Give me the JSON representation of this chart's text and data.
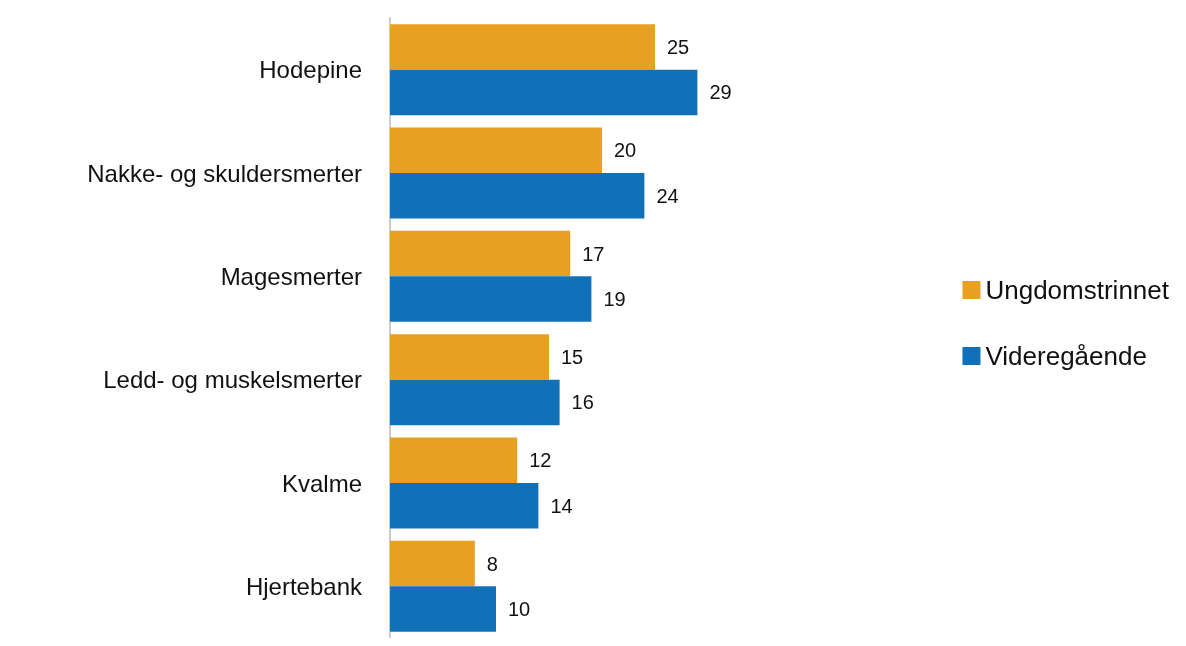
{
  "chart_data": {
    "type": "bar",
    "orientation": "horizontal",
    "categories": [
      "Hodepine",
      "Nakke- og skuldersmerter",
      "Magesmerter",
      "Ledd- og muskelsmerter",
      "Kvalme",
      "Hjertebank"
    ],
    "series": [
      {
        "name": "Ungdomstrinnet",
        "color": "#e8a020",
        "values": [
          25,
          20,
          17,
          15,
          12,
          8
        ]
      },
      {
        "name": "Videregående",
        "color": "#1070b8",
        "values": [
          29,
          24,
          19,
          16,
          14,
          10
        ]
      }
    ],
    "data_labels": true,
    "legend": "right"
  }
}
